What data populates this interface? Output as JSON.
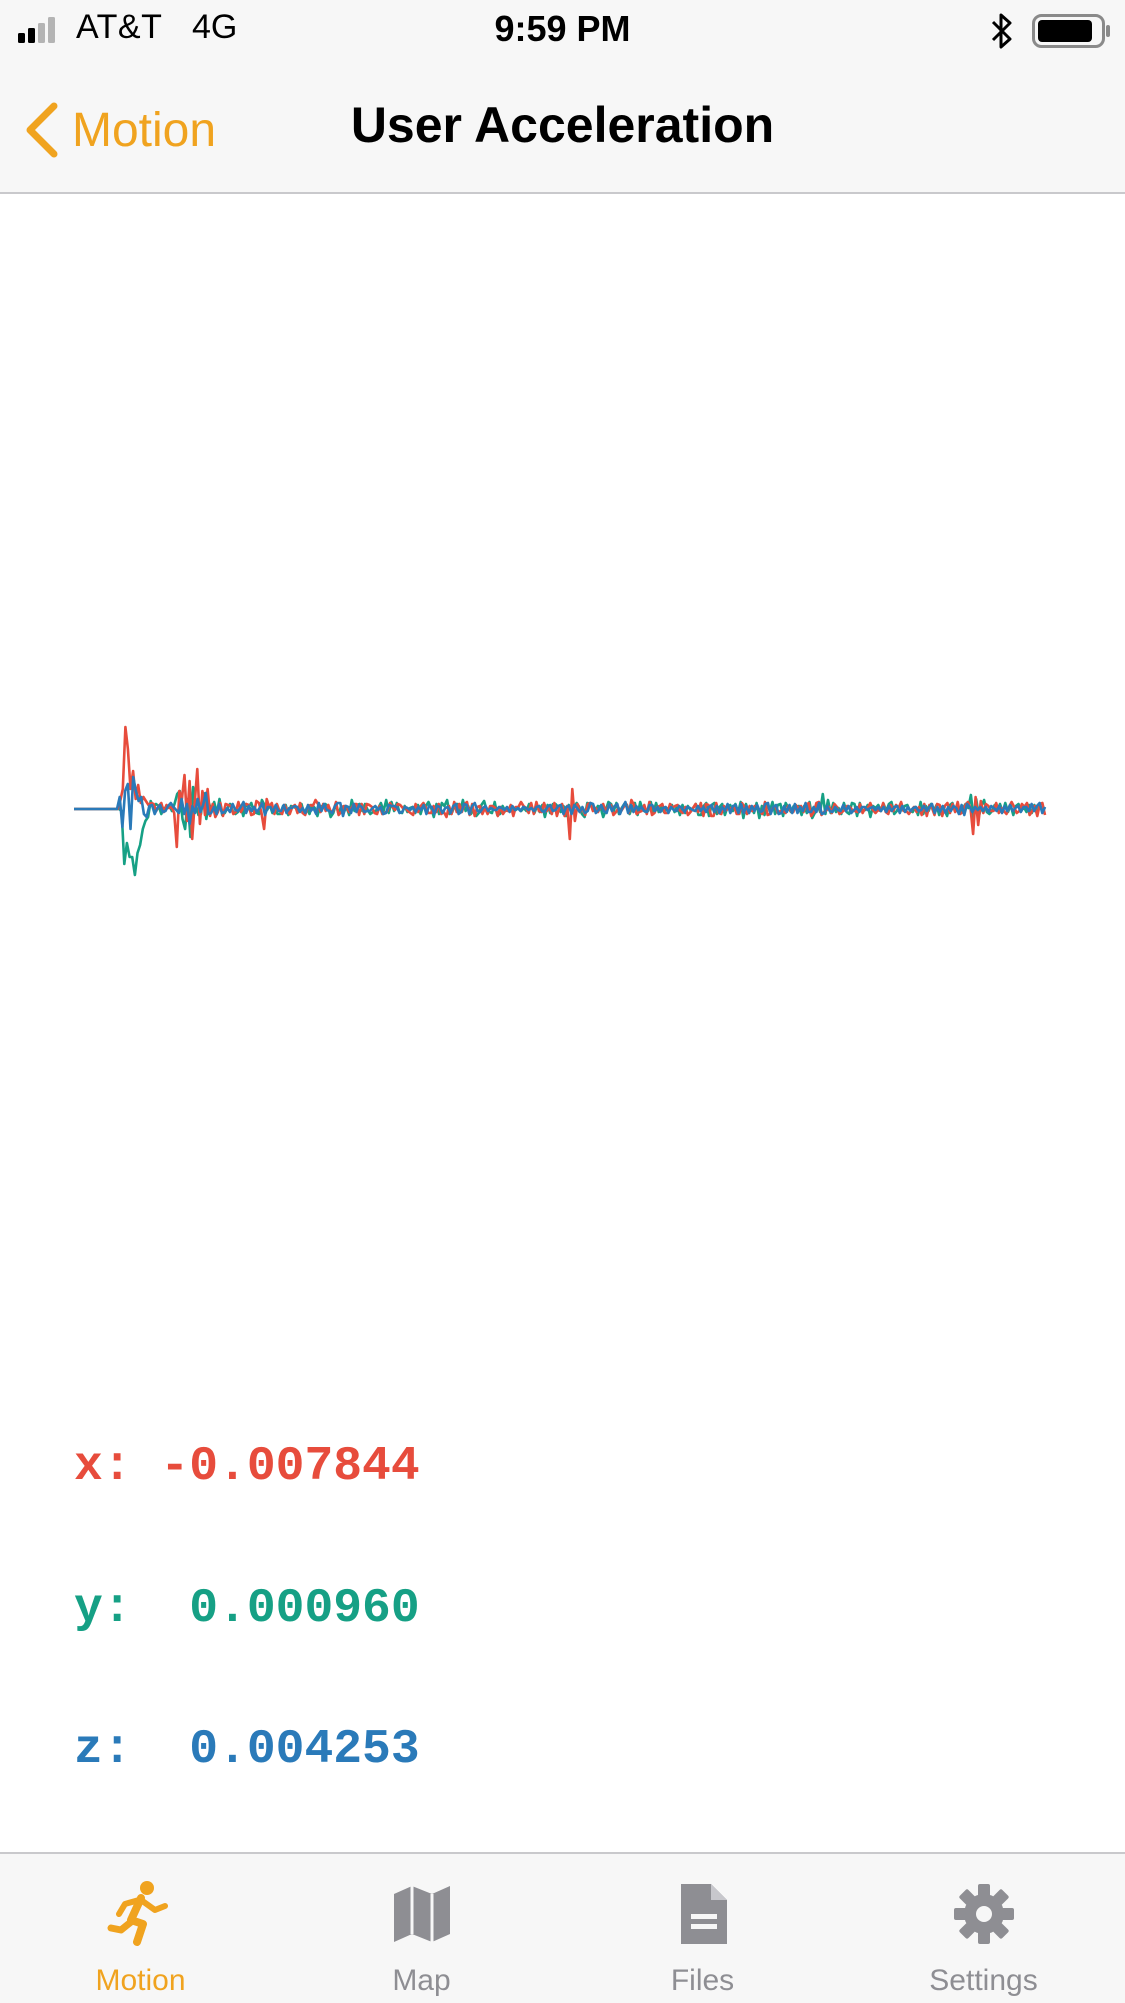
{
  "status_bar": {
    "carrier": "AT&T",
    "network": "4G",
    "time": "9:59 PM"
  },
  "nav": {
    "back_label": "Motion",
    "title": "User Acceleration"
  },
  "colors": {
    "accent": "#f0a31f",
    "x": "#e74c3c",
    "y": "#16a085",
    "z": "#2a7ab9",
    "inactive": "#8e8e93"
  },
  "readouts": {
    "x": {
      "label": "x:",
      "value": "-0.007844"
    },
    "y": {
      "label": "y:",
      "value": " 0.000960"
    },
    "z": {
      "label": "z:",
      "value": " 0.004253"
    }
  },
  "tabs": [
    {
      "label": "Motion",
      "icon": "running-icon",
      "active": true
    },
    {
      "label": "Map",
      "icon": "map-icon",
      "active": false
    },
    {
      "label": "Files",
      "icon": "file-icon",
      "active": false
    },
    {
      "label": "Settings",
      "icon": "gear-icon",
      "active": false
    }
  ],
  "chart_data": {
    "type": "line",
    "ylim": [
      -1,
      1
    ],
    "series": [
      {
        "values": [
          0,
          0,
          0,
          0,
          0,
          0,
          0,
          0,
          0,
          0,
          0,
          0,
          0,
          0,
          0,
          0,
          0,
          0,
          0.08,
          0.2,
          0.82,
          0.6,
          0.2,
          0.38,
          0.1,
          0.24,
          0.06,
          0.12,
          0.08,
          0.04,
          0.06,
          0.05,
          -0.02,
          0.03,
          0.06,
          -0.03,
          0.04,
          0.01,
          0.02,
          -0.04,
          -0.38,
          0.18,
          0.1,
          0.34,
          -0.12,
          0.28,
          -0.3,
          0.06,
          0.4,
          -0.15,
          0.18,
          -0.06,
          0.2,
          -0.07,
          0.05,
          -0.08,
          -0.03,
          0.06,
          -0.07,
          0.05,
          0.04,
          0.03,
          -0.05,
          -0.03,
          0.07,
          -0.03,
          0.02,
          0.05,
          0.04,
          -0.06,
          -0.05,
          0.08,
          0.06,
          -0.04,
          -0.2,
          0.1,
          0.02,
          0.06,
          -0.05,
          0.05,
          -0.02,
          -0.05,
          0.04,
          -0.01,
          -0.05,
          0.02,
          0.04,
          -0.04,
          0.06,
          -0.04,
          -0.06,
          0.02,
          0.04,
          0.03,
          0.09,
          0.05,
          -0.03,
          0.05,
          -0.02,
          0.04,
          -0.03,
          -0.02,
          0.07,
          -0.06,
          -0.03,
          0.03,
          0.03,
          -0.03,
          0.01,
          0.05,
          0.05,
          -0.06,
          0.05,
          -0.05,
          0.05,
          0.04,
          0.02,
          -0.04,
          -0.05,
          0.03,
          -0.05,
          -0.04,
          -0.02,
          0.06,
          0.02,
          -0.01,
          0.05,
          0.04,
          0.01,
          0.02,
          -0.02,
          -0.04,
          -0.06,
          0.05,
          -0.03,
          0.03,
          0.06,
          0.01,
          -0.04,
          -0.04,
          0.03,
          -0.03,
          0.05,
          -0.05,
          -0.03,
          -0.08,
          0.03,
          -0.05,
          0.07,
          -0.03,
          0.05,
          -0.03,
          0.05,
          0.07,
          -0.06,
          0.05,
          -0.07,
          0.02,
          0.03,
          -0.05,
          0.01,
          -0.05,
          0.03,
          0.03,
          0.01,
          -0.07,
          0.02,
          -0.05,
          -0.01,
          -0.02,
          0.04,
          -0.07,
          0.02,
          0.02,
          0.07,
          0.03,
          0.01,
          -0.04,
          0.06,
          -0.05,
          0.07,
          -0.02,
          -0.03,
          0.06,
          -0.02,
          0.02,
          -0.05,
          0.06,
          -0.07,
          0.02,
          0.05,
          -0.07,
          0.03,
          -0.3,
          0.2,
          -0.12,
          0.05,
          -0.03,
          0.01,
          -0.06,
          0.05,
          0.06,
          -0.02,
          0.01,
          -0.03,
          0.02,
          0.05,
          -0.03,
          0.03,
          0.04,
          -0.06,
          -0.03,
          0.01,
          -0.02,
          0.02,
          0.05,
          -0.04,
          0.09,
          0.04,
          -0.05,
          -0.03,
          -0.02,
          0.04,
          -0.05,
          0.07,
          -0.06,
          -0.04,
          0.02,
          0.03,
          0.05,
          -0.04,
          -0.04,
          0.05,
          0.01,
          0.03,
          0.04,
          -0.02,
          -0.04,
          0.02,
          -0.06,
          -0.03,
          0.01,
          0.05,
          -0.03,
          0.06,
          -0.07,
          0.05,
          0.04,
          -0.07,
          -0.07,
          0.06,
          -0.04,
          -0.05,
          0.03,
          -0.01,
          0.01,
          0.01,
          0.02,
          -0.05,
          -0.05,
          0.06,
          0.02,
          -0.05,
          0.03,
          -0.02,
          0.03,
          0.03,
          -0.02,
          -0.05,
          0.07,
          -0.06,
          -0.05,
          0.01,
          0.03,
          -0.04,
          -0.02,
          -0.02,
          -0.04,
          0.03,
          -0.02,
          -0.03,
          0.04,
          0.01,
          0.03,
          -0.03,
          0.04,
          0.06,
          -0.07,
          -0.03,
          0.06,
          0.07,
          -0.06,
          -0.03,
          -0.01,
          0.02,
          -0.04,
          0.05,
          0.02,
          -0.05,
          -0.03,
          -0.01,
          0.03,
          0.02,
          -0.01,
          -0.02,
          -0.03,
          0.05,
          -0.04,
          0.01,
          0.01,
          0.06,
          -0.01,
          -0.04,
          -0.01,
          -0.02,
          0.06,
          -0.03,
          -0.05,
          0.04,
          -0.02,
          0.04,
          0.01,
          0.07,
          -0.02,
          -0.02,
          -0.05,
          -0.01,
          0.02,
          -0.03,
          0.02,
          -0.06,
          0.05,
          -0.07,
          0.04,
          0.01,
          -0.06,
          0.05,
          0.04,
          -0.07,
          0.03,
          0.06,
          -0.04,
          0.05,
          -0.03,
          0.07,
          -0.05,
          -0.03,
          0.04,
          0.07,
          0.01,
          -0.25,
          0.12,
          -0.16,
          0.08,
          -0.04,
          0.05,
          0.03,
          -0.02,
          -0.02,
          0.06,
          -0.04,
          0.01,
          -0.02,
          -0.05,
          0.02,
          0.07,
          0.02,
          -0.04,
          -0.02,
          0.05,
          0.02,
          0.06,
          -0.06,
          -0.02,
          0.03,
          -0.07,
          0.05,
          0.06,
          -0.06
        ]
      },
      {
        "values": [
          0,
          0,
          0,
          0,
          0,
          0,
          0,
          0,
          0,
          0,
          0,
          0,
          0,
          0,
          0,
          0,
          0,
          0,
          -0.02,
          -0.55,
          -0.34,
          -0.48,
          -0.48,
          -0.66,
          -0.44,
          -0.36,
          -0.2,
          -0.12,
          -0.08,
          0.08,
          0.02,
          0.05,
          0.03,
          -0.05,
          0.01,
          0.01,
          0.04,
          -0.02,
          0.05,
          0.15,
          0.18,
          -0.1,
          -0.2,
          0.1,
          -0.28,
          0.22,
          0.05,
          -0.06,
          -0.05,
          0.16,
          -0.1,
          0.06,
          -0.02,
          0.07,
          -0.04,
          0.1,
          -0.06,
          -0.04,
          0.01,
          0.05,
          -0.02,
          -0.05,
          -0.03,
          0.03,
          -0.07,
          0.05,
          0.02,
          0.06,
          -0.03,
          -0.04,
          -0.05,
          0.09,
          0.04,
          -0.01,
          0.04,
          -0.04,
          -0.01,
          -0.05,
          -0.05,
          0.03,
          0.04,
          -0.06,
          0.03,
          0.02,
          0.01,
          -0.02,
          0.05,
          -0.05,
          0.01,
          -0.05,
          0.04,
          0.01,
          -0.07,
          0.03,
          0.02,
          0.05,
          0.03,
          -0.08,
          -0.04,
          0.05,
          -0.05,
          0.03,
          -0.03,
          0.02,
          -0.06,
          0.09,
          -0.02,
          0.04,
          0.05,
          -0.02,
          0.05,
          -0.01,
          -0.05,
          -0.03,
          -0.02,
          0.01,
          0.06,
          -0.02,
          0.09,
          -0.04,
          0.07,
          -0.02,
          0.06,
          -0.03,
          -0.04,
          0.03,
          -0.03,
          0.01,
          0.02,
          -0.04,
          0.04,
          -0.05,
          0.04,
          0.03,
          0.07,
          0.01,
          -0.08,
          0.05,
          -0.05,
          0.06,
          0.03,
          0.09,
          -0.05,
          -0.03,
          0.05,
          0.05,
          -0.02,
          0.09,
          -0.02,
          0.03,
          -0.05,
          -0.01,
          -0.07,
          -0.04,
          0.04,
          0.08,
          -0.01,
          -0.03,
          -0.04,
          0.07,
          -0.06,
          -0.05,
          0.03,
          -0.02,
          -0.01,
          0.01,
          -0.02,
          -0.01,
          0.01,
          -0.02,
          0.01,
          -0.02,
          0.05,
          0.02,
          -0.04,
          0.03,
          -0.03,
          0.04,
          -0.08,
          0.04,
          -0.04,
          0.05,
          0.05,
          0.02,
          -0.03,
          0.03,
          -0.07,
          0.04,
          -0.03,
          0.02,
          0.06,
          0.02,
          -0.05,
          -0.08,
          0.06,
          0.05,
          0.04,
          -0.02,
          0.03,
          0.02,
          -0.08,
          -0.01,
          0.07,
          0.05,
          -0.02,
          0.06,
          -0.05,
          0.01,
          0.05,
          0.04,
          -0.05,
          0.02,
          0.06,
          -0.06,
          0.07,
          -0.01,
          -0.03,
          -0.02,
          0.07,
          -0.04,
          0.06,
          -0.03,
          0.02,
          -0.03,
          0.01,
          -0.02,
          0.04,
          -0.03,
          0.03,
          -0.06,
          0.04,
          -0.04,
          0.03,
          -0.01,
          0.01,
          0.05,
          -0.06,
          -0.06,
          0.03,
          0.06,
          -0.07,
          0.04,
          0.06,
          -0.05,
          0.02,
          0.05,
          -0.06,
          0.02,
          0.04,
          -0.02,
          0.05,
          -0.03,
          0.07,
          -0.09,
          0.05,
          -0.04,
          0.02,
          -0.04,
          0.06,
          -0.09,
          0.03,
          -0.06,
          0.05,
          -0.02,
          0.07,
          -0.05,
          0.04,
          0.05,
          -0.07,
          0.06,
          0.01,
          -0.03,
          0.03,
          0.02,
          0.03,
          -0.06,
          0.03,
          -0.04,
          0.07,
          -0.09,
          -0.04,
          0.06,
          -0.03,
          0.15,
          -0.05,
          0.09,
          -0.04,
          0.06,
          -0.03,
          0.01,
          -0.05,
          0.06,
          -0.03,
          -0.05,
          0.06,
          0.05,
          -0.07,
          0.06,
          -0.02,
          -0.01,
          0.04,
          -0.08,
          0.03,
          0.01,
          0.04,
          -0.02,
          0.05,
          -0.02,
          0.05,
          0.07,
          -0.05,
          -0.02,
          0.03,
          -0.01,
          0.03,
          0.04,
          -0.02,
          -0.03,
          0.02,
          -0.06,
          0.07,
          -0.05,
          0.03,
          -0.02,
          0.05,
          -0.02,
          0.04,
          -0.06,
          0.02,
          -0.01,
          -0.07,
          0.04,
          0.06,
          -0.01,
          0.03,
          -0.04,
          0.01,
          0.05,
          0.01,
          0.14,
          -0.1,
          0.1,
          -0.07,
          0.03,
          0.09,
          -0.03,
          -0.05,
          -0.02,
          0.04,
          -0.01,
          0.05,
          -0.03,
          0.06,
          -0.03,
          0.04,
          -0.06,
          0.03,
          0.05,
          -0.02,
          0.02,
          -0.03,
          0.04,
          -0.04,
          0.04,
          -0.04,
          0.05,
          -0.03,
          0.02
        ]
      },
      {
        "values": [
          0,
          0,
          0,
          0,
          0,
          0,
          0,
          0,
          0,
          0,
          0,
          0,
          0,
          0,
          0,
          0,
          0,
          0.12,
          -0.18,
          0.18,
          0.25,
          -0.2,
          0.32,
          0.18,
          0.08,
          0.12,
          -0.05,
          -0.08,
          0.03,
          0.04,
          -0.05,
          0.01,
          0.04,
          -0.03,
          -0.02,
          0.03,
          0.06,
          0.02,
          -0.01,
          -0.04,
          0.1,
          -0.05,
          0.05,
          -0.15,
          0.03,
          -0.04,
          0.1,
          -0.03,
          0.04,
          0.16,
          -0.05,
          -0.04,
          0.02,
          -0.05,
          0.05,
          -0.04,
          -0.03,
          0.01,
          -0.03,
          0.05,
          -0.01,
          -0.02,
          0.02,
          0.07,
          -0.04,
          0.03,
          -0.02,
          0.02,
          -0.03,
          0.01,
          0.06,
          -0.06,
          0.02,
          0.02,
          -0.03,
          0.04,
          -0.02,
          -0.02,
          0.04,
          -0.04,
          0.01,
          0.01,
          0.03,
          0.02,
          -0.03,
          0.01,
          -0.04,
          0.04,
          -0.02,
          0.01,
          -0.05,
          0.06,
          -0.02,
          0.05,
          -0.01,
          -0.02,
          -0.04,
          0.03,
          0.06,
          0.06,
          -0.07,
          0.03,
          0.02,
          -0.04,
          0.05,
          -0.03,
          0.04,
          0.02,
          -0.03,
          -0.02,
          -0.02,
          0.01,
          0.03,
          -0.01,
          0.02,
          -0.05,
          -0.04,
          0.04,
          0.03,
          0.03,
          0.02,
          -0.04,
          -0.03,
          0.02,
          0.01,
          -0.01,
          0.02,
          -0.03,
          0.02,
          -0.01,
          0.04,
          -0.05,
          0.03,
          0.02,
          -0.05,
          0.03,
          0.02,
          -0.04,
          0.01,
          0.02,
          -0.04,
          0.03,
          0.05,
          -0.05,
          -0.03,
          0.05,
          0.04,
          -0.05,
          0.03,
          0.06,
          -0.02,
          -0.03,
          0.01,
          0.03,
          -0.02,
          0.01,
          -0.01,
          -0.01,
          0.02,
          0.01,
          -0.01,
          0.02,
          -0.03,
          0.03,
          -0.01,
          0.01,
          -0.02,
          0.02,
          0.01,
          -0.01,
          0.01,
          -0.02,
          0.02,
          0.03,
          -0.02,
          -0.03,
          0.02,
          0.04,
          -0.02,
          -0.01,
          0.03,
          0.04,
          -0.05,
          0.02,
          0.03,
          -0.05,
          0.04,
          0.01,
          -0.03,
          0.02,
          -0.04,
          -0.02,
          0.06,
          0.05,
          -0.04,
          -0.01,
          0.04,
          -0.02,
          -0.04,
          0.05,
          -0.02,
          0.03,
          0.05,
          -0.05,
          0.02,
          0.07,
          -0.04,
          0.04,
          -0.03,
          0.03,
          -0.01,
          0.02,
          -0.02,
          -0.03,
          0.04,
          0.04,
          -0.02,
          0.02,
          -0.03,
          0.01,
          0.02,
          -0.04,
          0.02,
          -0.01,
          -0.02,
          0.03,
          0.01,
          -0.03,
          0.02,
          0.01,
          -0.01,
          -0.02,
          0.03,
          -0.02,
          0.02,
          -0.03,
          0.02,
          0.04,
          -0.03,
          0.03,
          -0.04,
          0.02,
          -0.02,
          0.05,
          -0.04,
          0.03,
          0.04,
          -0.04,
          0.05,
          -0.04,
          0.03,
          -0.04,
          0.03,
          -0.02,
          0.04,
          -0.03,
          -0.02,
          0.05,
          0.06,
          -0.05,
          0.02,
          0.04,
          -0.05,
          -0.04,
          0.03,
          -0.03,
          0.04,
          -0.04,
          0.05,
          -0.04,
          0.02,
          -0.02,
          0.06,
          -0.03,
          -0.03,
          0.02,
          -0.03,
          0.06,
          -0.05,
          -0.04,
          0.03,
          -0.02,
          -0.03,
          0.02,
          -0.01,
          -0.02,
          0.04,
          -0.02,
          0.03,
          -0.04,
          -0.01,
          0.02,
          -0.03,
          0.02,
          0.02,
          -0.01,
          0.01,
          0.02,
          -0.01,
          0.02,
          -0.02,
          0.02,
          -0.03,
          0.03,
          -0.02,
          0.02,
          0.03,
          -0.04,
          0.03,
          -0.03,
          0.02,
          -0.02,
          0.01,
          0.02,
          -0.02,
          -0.01,
          0.03,
          -0.02,
          0.02,
          0.05,
          -0.04,
          0.02,
          -0.03,
          0.03,
          -0.04,
          0.02,
          -0.02,
          0.03,
          0.01,
          -0.05,
          0.04,
          -0.06,
          0.05,
          0.02,
          -0.03,
          0.02,
          -0.01,
          0.02,
          -0.02,
          0.02,
          -0.03,
          0.03,
          0.01,
          -0.02,
          0.03,
          -0.04,
          0.03,
          -0.02,
          0.04,
          -0.02,
          0.01,
          0.03,
          -0.03,
          0.02,
          0.02,
          -0.02,
          0.05,
          -0.02,
          0.03,
          0.06,
          -0.04,
          0.02
        ]
      }
    ]
  }
}
